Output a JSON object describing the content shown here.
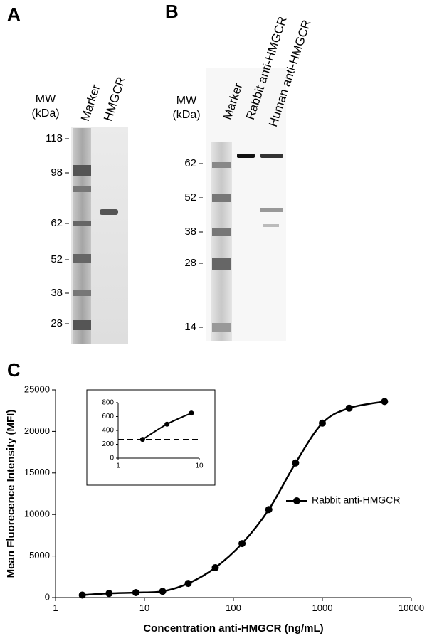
{
  "panel_a": {
    "label": "A",
    "mw_label": "MW",
    "mw_unit": "(kDa)",
    "lanes": [
      "Marker",
      "HMGCR"
    ],
    "markers": [
      "118",
      "98",
      "62",
      "52",
      "38",
      "28"
    ]
  },
  "panel_b": {
    "label": "B",
    "mw_label": "MW",
    "mw_unit": "(kDa)",
    "lanes": [
      "Marker",
      "Rabbit anti-HMGCR",
      "Human anti-HMGCR"
    ],
    "markers": [
      "62",
      "52",
      "38",
      "28",
      "14"
    ]
  },
  "panel_c": {
    "label": "C"
  },
  "chart_data": [
    {
      "type": "line",
      "x_label": "Concentration anti-HMGCR (ng/mL)",
      "y_label": "Mean Fluorecence Intensity (MFI)",
      "x": [
        2,
        4,
        8,
        16,
        31,
        62.5,
        125,
        250,
        500,
        1000,
        2000,
        5000
      ],
      "series": [
        {
          "name": "Rabbit anti-HMGCR",
          "color": "#000000",
          "values": [
            300,
            500,
            600,
            750,
            1700,
            3600,
            6500,
            10600,
            16200,
            21000,
            22800,
            23600
          ]
        }
      ],
      "xlim": [
        1,
        10000
      ],
      "xticks": [
        1,
        10,
        100,
        1000,
        10000
      ],
      "x_log": true,
      "ylim": [
        0,
        25000
      ],
      "yticks": [
        0,
        5000,
        10000,
        15000,
        20000,
        25000
      ]
    },
    {
      "type": "line",
      "x": [
        2,
        4,
        8
      ],
      "series": [
        {
          "color": "#000000",
          "values": [
            270,
            490,
            650
          ]
        }
      ],
      "threshold": 270,
      "xlim": [
        1,
        10
      ],
      "xticks": [
        1,
        10
      ],
      "x_log": true,
      "ylim": [
        0,
        800
      ],
      "yticks": [
        0,
        200,
        400,
        600,
        800
      ]
    }
  ]
}
